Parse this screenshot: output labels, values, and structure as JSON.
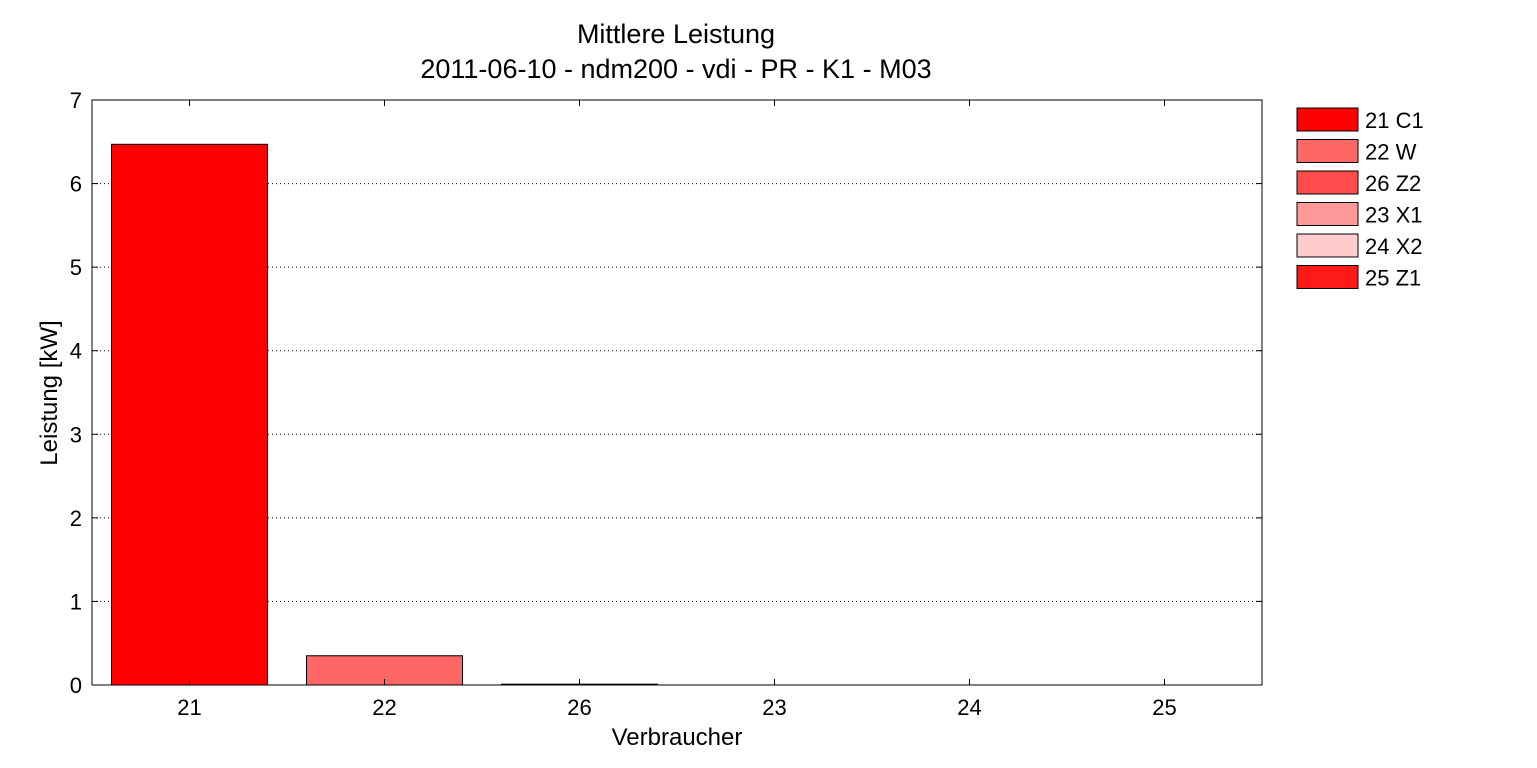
{
  "chart_data": {
    "type": "bar",
    "title": "Mittlere Leistung",
    "subtitle": "2011-06-10 - ndm200 - vdi - PR - K1 - M03",
    "xlabel": "Verbraucher",
    "ylabel": "Leistung [kW]",
    "categories": [
      "21",
      "22",
      "26",
      "23",
      "24",
      "25"
    ],
    "values": [
      6.47,
      0.35,
      0.01,
      0,
      0,
      0
    ],
    "colors": [
      "#FF0000",
      "#FF6666",
      "#FF4D4D",
      "#FF9999",
      "#FFCCCC",
      "#FF1A1A"
    ],
    "ylim": [
      0,
      7
    ],
    "yticks": [
      "0",
      "1",
      "2",
      "3",
      "4",
      "5",
      "6",
      "7"
    ],
    "grid": "horizontal dotted",
    "legend": {
      "position": "outside-right-top",
      "entries": [
        {
          "label": "21 C1",
          "color": "#FF0000"
        },
        {
          "label": "22 W",
          "color": "#FF6666"
        },
        {
          "label": "26 Z2",
          "color": "#FF4D4D"
        },
        {
          "label": "23 X1",
          "color": "#FF9999"
        },
        {
          "label": "24 X2",
          "color": "#FFCCCC"
        },
        {
          "label": "25 Z1",
          "color": "#FF1A1A"
        }
      ]
    }
  }
}
